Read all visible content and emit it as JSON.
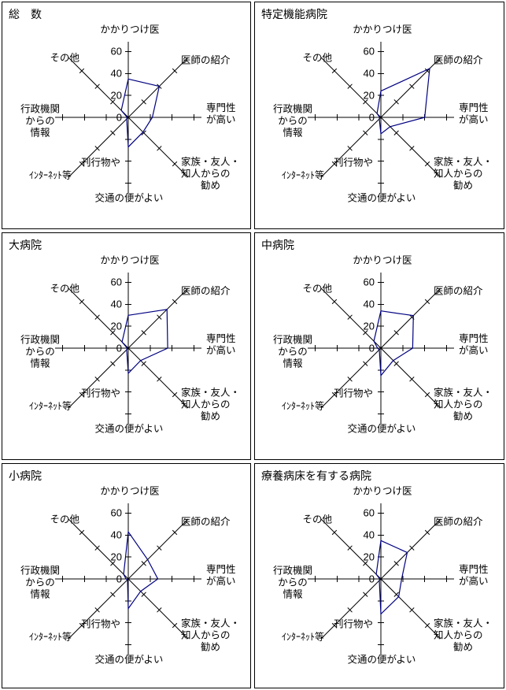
{
  "colors": {
    "background": "#ffffff",
    "panel_border": "#000000",
    "axis": "#000000",
    "polygon": "#000080",
    "text": "#000000"
  },
  "labels": {
    "tick_labels": [
      "0",
      "20",
      "40",
      "60"
    ],
    "axis_lines": [
      [
        "かかりつけ医"
      ],
      [
        "医師の紹介"
      ],
      [
        "専門性",
        "が高い"
      ],
      [
        "家族・友人・",
        "知人からの",
        "勧め"
      ],
      [
        "交通の便がよい"
      ],
      [
        "刊行物や",
        "ｲﾝﾀｰﾈｯﾄ等"
      ],
      [
        "行政機関",
        "からの",
        "情報"
      ],
      [
        "その他"
      ]
    ]
  },
  "chart_data": [
    {
      "type": "radar",
      "title": "総　数",
      "categories": [
        "かかりつけ医",
        "医師の紹介",
        "専門性が高い",
        "家族・友人・知人からの勧め",
        "交通の便がよい",
        "刊行物やインターネット等",
        "行政機関からの情報",
        "その他"
      ],
      "values": [
        35,
        40,
        22,
        19,
        27,
        2,
        1,
        9
      ],
      "r_max": 60,
      "tick_values": [
        0,
        20,
        40,
        60
      ],
      "grid": "radial-axes-only",
      "legend": "none"
    },
    {
      "type": "radar",
      "title": "特定機能病院",
      "categories": [
        "かかりつけ医",
        "医師の紹介",
        "専門性が高い",
        "家族・友人・知人からの勧め",
        "交通の便がよい",
        "刊行物やインターネット等",
        "行政機関からの情報",
        "その他"
      ],
      "values": [
        24,
        63,
        40,
        12,
        15,
        2,
        1,
        5
      ],
      "r_max": 60,
      "tick_values": [
        0,
        20,
        40,
        60
      ],
      "grid": "radial-axes-only",
      "legend": "none"
    },
    {
      "type": "radar",
      "title": "大病院",
      "categories": [
        "かかりつけ医",
        "医師の紹介",
        "専門性が高い",
        "家族・友人・知人からの勧め",
        "交通の便がよい",
        "刊行物やインターネット等",
        "行政機関からの情報",
        "その他"
      ],
      "values": [
        30,
        50,
        36,
        16,
        23,
        2,
        1,
        8
      ],
      "r_max": 60,
      "tick_values": [
        0,
        20,
        40,
        60
      ],
      "grid": "radial-axes-only",
      "legend": "none"
    },
    {
      "type": "radar",
      "title": "中病院",
      "categories": [
        "かかりつけ医",
        "医師の紹介",
        "専門性が高い",
        "家族・友人・知人からの勧め",
        "交通の便がよい",
        "刊行物やインターネット等",
        "行政機関からの情報",
        "その他"
      ],
      "values": [
        34,
        42,
        29,
        16,
        25,
        2,
        3,
        9
      ],
      "r_max": 60,
      "tick_values": [
        0,
        20,
        40,
        60
      ],
      "grid": "radial-axes-only",
      "legend": "none"
    },
    {
      "type": "radar",
      "title": "小病院",
      "categories": [
        "かかりつけ医",
        "医師の紹介",
        "専門性が高い",
        "家族・友人・知人からの勧め",
        "交通の便がよい",
        "刊行物やインターネット等",
        "行政機関からの情報",
        "その他"
      ],
      "values": [
        43,
        25,
        27,
        16,
        27,
        1,
        2,
        6
      ],
      "r_max": 60,
      "tick_values": [
        0,
        20,
        40,
        60
      ],
      "grid": "radial-axes-only",
      "legend": "none"
    },
    {
      "type": "radar",
      "title": "療養病床を有する病院",
      "categories": [
        "かかりつけ医",
        "医師の紹介",
        "専門性が高い",
        "家族・友人・知人からの勧め",
        "交通の便がよい",
        "刊行物やインターネット等",
        "行政機関からの情報",
        "その他"
      ],
      "values": [
        35,
        34,
        19,
        23,
        32,
        2,
        1,
        6
      ],
      "r_max": 60,
      "tick_values": [
        0,
        20,
        40,
        60
      ],
      "grid": "radial-axes-only",
      "legend": "none"
    }
  ]
}
